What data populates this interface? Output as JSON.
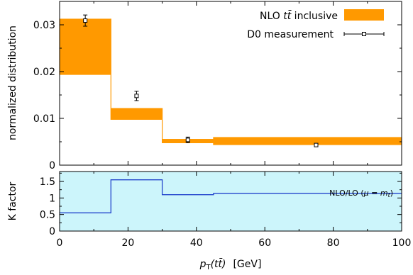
{
  "chart_data": [
    {
      "type": "bar",
      "panel": "main",
      "ylabel": "normalized distribution",
      "xlim": [
        0,
        100
      ],
      "ylim": [
        0,
        0.035
      ],
      "yticks": [
        0,
        0.01,
        0.02,
        0.03
      ],
      "ytick_labels": [
        "0",
        "0.01",
        "0.02",
        "0.03"
      ],
      "grid": false,
      "legend_position": "top-right",
      "series": [
        {
          "name": "NLO tt̄ inclusive",
          "kind": "band",
          "color": "#ff9900",
          "bins": [
            {
              "x_low": 0,
              "x_high": 15,
              "y_low": 0.0193,
              "y_high": 0.0313
            },
            {
              "x_low": 15,
              "x_high": 30,
              "y_low": 0.0097,
              "y_high": 0.0122
            },
            {
              "x_low": 30,
              "x_high": 45,
              "y_low": 0.0047,
              "y_high": 0.0056
            },
            {
              "x_low": 45,
              "x_high": 100,
              "y_low": 0.0043,
              "y_high": 0.006
            }
          ]
        },
        {
          "name": "D0 measurement",
          "kind": "points",
          "color": "#000000",
          "points": [
            {
              "x": 7.5,
              "y": 0.0309,
              "err": 0.0012
            },
            {
              "x": 22.5,
              "y": 0.0148,
              "err": 0.001
            },
            {
              "x": 37.5,
              "y": 0.0054,
              "err": 0.0006
            },
            {
              "x": 75,
              "y": 0.0043,
              "err": 0.0003
            }
          ]
        }
      ],
      "legend": {
        "band_label_prefix": "NLO ",
        "band_label_math": "tt̄",
        "band_label_suffix": " inclusive",
        "points_label": "D0 measurement"
      }
    },
    {
      "type": "line",
      "panel": "ratio",
      "ylabel": "K factor",
      "xlabel_math": "p",
      "xlabel_sub": "T",
      "xlabel_arg": "(tt̄)",
      "xlabel_unit": "[GeV]",
      "xlim": [
        0,
        100
      ],
      "ylim": [
        0,
        1.8
      ],
      "xticks": [
        0,
        20,
        40,
        60,
        80,
        100
      ],
      "xtick_labels": [
        "0",
        "20",
        "40",
        "60",
        "80",
        "100"
      ],
      "yticks": [
        0,
        0.5,
        1,
        1.5
      ],
      "ytick_labels": [
        "0",
        "0.5",
        "1",
        "1.5"
      ],
      "background": "#ccf5fb",
      "series": [
        {
          "name": "NLO/LO (μ = mt)",
          "color": "#2244cc",
          "bins": [
            {
              "x_low": 0,
              "x_high": 15,
              "y": 0.55
            },
            {
              "x_low": 15,
              "x_high": 30,
              "y": 1.55
            },
            {
              "x_low": 30,
              "x_high": 45,
              "y": 1.1
            },
            {
              "x_low": 45,
              "x_high": 100,
              "y": 1.14
            }
          ]
        }
      ],
      "annotation": {
        "prefix": "NLO/LO (",
        "mu": "μ",
        "eq": " = ",
        "m": "m",
        "sub": "t",
        "suffix": ")"
      }
    }
  ]
}
